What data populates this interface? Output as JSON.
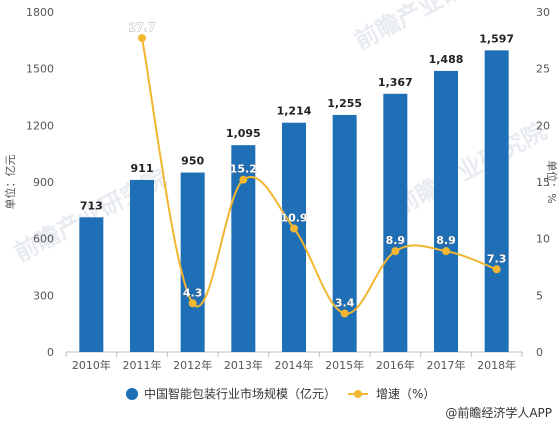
{
  "chart_data": {
    "type": "bar",
    "categories": [
      "2010年",
      "2011年",
      "2012年",
      "2013年",
      "2014年",
      "2015年",
      "2016年",
      "2017年",
      "2018年"
    ],
    "series": [
      {
        "name": "中国智能包装行业市场规模（亿元）",
        "type": "bar",
        "axis": "left",
        "values": [
          713,
          911,
          950,
          1095,
          1214,
          1255,
          1367,
          1488,
          1597
        ],
        "labels": [
          "713",
          "911",
          "950",
          "1,095",
          "1,214",
          "1,255",
          "1,367",
          "1,488",
          "1,597"
        ],
        "color": "#1f6fb7"
      },
      {
        "name": "增速（%）",
        "type": "line",
        "axis": "right",
        "values": [
          null,
          27.7,
          4.3,
          15.2,
          10.9,
          3.4,
          8.9,
          8.9,
          7.3
        ],
        "labels": [
          "",
          "27.7",
          "4.3",
          "15.2",
          "10.9",
          "3.4",
          "8.9",
          "8.9",
          "7.3"
        ],
        "color": "#f2b630"
      }
    ],
    "ylabel": "单位：亿元",
    "y2label": "单位：%",
    "ylim": [
      0,
      1800
    ],
    "y2lim": [
      0,
      30
    ],
    "yticks": [
      0,
      300,
      600,
      900,
      1200,
      1500,
      1800
    ],
    "y2ticks": [
      0,
      5,
      10,
      15,
      20,
      25,
      30
    ],
    "grid": false,
    "legend": "bottom"
  },
  "watermark": "前瞻产业研究院",
  "source": "@前瞻经济学人APP"
}
